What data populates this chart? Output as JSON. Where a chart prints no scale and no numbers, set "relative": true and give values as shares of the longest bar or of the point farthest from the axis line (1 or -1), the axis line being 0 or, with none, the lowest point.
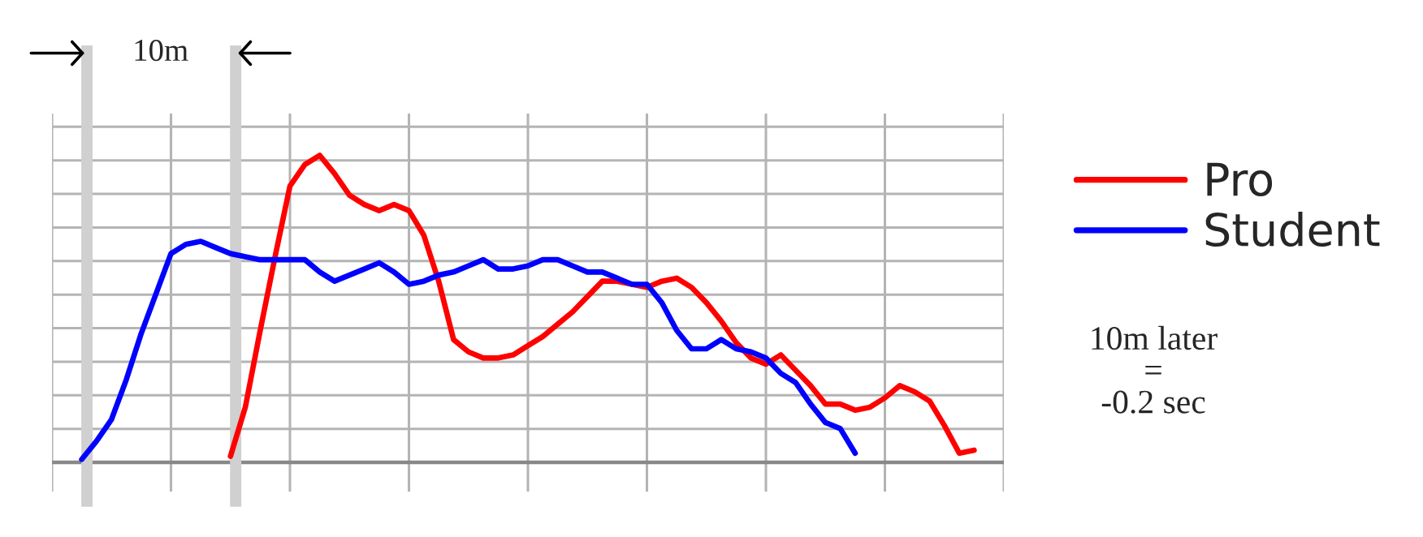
{
  "chart_data": {
    "type": "line",
    "relative": true,
    "grid": true,
    "legend": "right",
    "line_style": "solid",
    "marker": "none",
    "categories": [
      null,
      null,
      null,
      null,
      null,
      null,
      null,
      null,
      null,
      null,
      null,
      null,
      null,
      null,
      null,
      null,
      null,
      null,
      null,
      null,
      null,
      null,
      null,
      null,
      null,
      null,
      null,
      null,
      null,
      null,
      null,
      null,
      null,
      null,
      null,
      null,
      null,
      null,
      null,
      null,
      null,
      null,
      null,
      null,
      null,
      null,
      null,
      null,
      null,
      null,
      null,
      null,
      null,
      null,
      null,
      null,
      null,
      null,
      null,
      null,
      null,
      null,
      null,
      null,
      null
    ],
    "series": [
      {
        "name": "Pro",
        "color": "#ff0000",
        "values": [
          null,
          null,
          null,
          null,
          null,
          null,
          null,
          null,
          null,
          null,
          null,
          null,
          0.02,
          0.18,
          0.43,
          0.67,
          0.9,
          0.97,
          1.0,
          0.94,
          0.87,
          0.84,
          0.82,
          0.84,
          0.82,
          0.74,
          0.59,
          0.4,
          0.36,
          0.34,
          0.34,
          0.35,
          0.38,
          0.41,
          0.45,
          0.49,
          0.54,
          0.59,
          0.59,
          0.58,
          0.57,
          0.59,
          0.6,
          0.57,
          0.52,
          0.46,
          0.39,
          0.34,
          0.32,
          0.35,
          0.3,
          0.25,
          0.19,
          0.19,
          0.17,
          0.18,
          0.21,
          0.25,
          0.23,
          0.2,
          0.12,
          0.03,
          0.04,
          null,
          null
        ]
      },
      {
        "name": "Student",
        "color": "#0000ff",
        "values": [
          null,
          null,
          0.01,
          0.07,
          0.14,
          0.27,
          0.42,
          0.55,
          0.68,
          0.71,
          0.72,
          0.7,
          0.68,
          0.67,
          0.66,
          0.66,
          0.66,
          0.66,
          0.62,
          0.59,
          0.61,
          0.63,
          0.65,
          0.62,
          0.58,
          0.59,
          0.61,
          0.62,
          0.64,
          0.66,
          0.63,
          0.63,
          0.64,
          0.66,
          0.66,
          0.64,
          0.62,
          0.62,
          0.6,
          0.58,
          0.58,
          0.52,
          0.43,
          0.37,
          0.37,
          0.4,
          0.37,
          0.36,
          0.34,
          0.29,
          0.26,
          0.19,
          0.13,
          0.11,
          0.03,
          null,
          null,
          null,
          null,
          null,
          null,
          null,
          null,
          null,
          null
        ]
      }
    ],
    "annotations": [
      "10m",
      "10m later\n=\n-0.2 sec"
    ]
  }
}
